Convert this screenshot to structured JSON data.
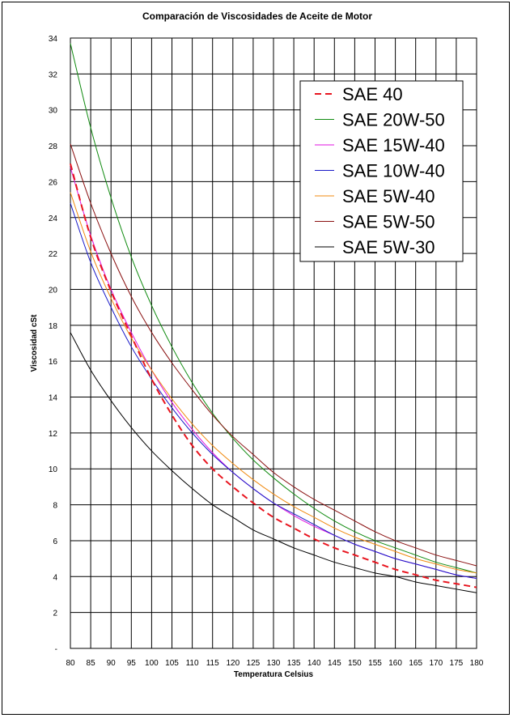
{
  "chart_data": {
    "type": "line",
    "title": "Comparación de Viscosidades de Aceite de Motor",
    "xlabel": "Temperatura Celsius",
    "ylabel": "Viscosidad cSt",
    "xlim": [
      80,
      180
    ],
    "ylim": [
      0,
      34
    ],
    "x_ticks": [
      "80",
      "85",
      "90",
      "95",
      "100",
      "105",
      "110",
      "115",
      "120",
      "125",
      "130",
      "135",
      "140",
      "145",
      "150",
      "155",
      "160",
      "165",
      "170",
      "175",
      "180"
    ],
    "y_ticks": [
      "-",
      "2",
      "4",
      "6",
      "8",
      "10",
      "12",
      "14",
      "16",
      "18",
      "20",
      "22",
      "24",
      "26",
      "28",
      "30",
      "32",
      "34"
    ],
    "grid": true,
    "legend_position": "top-right",
    "x": [
      80,
      85,
      90,
      95,
      100,
      105,
      110,
      115,
      120,
      125,
      130,
      135,
      140,
      145,
      150,
      155,
      160,
      165,
      170,
      175,
      180
    ],
    "series": [
      {
        "name": "SAE 40",
        "color": "#e8151f",
        "dashed": true,
        "values": [
          27.0,
          22.9,
          19.9,
          17.4,
          15.0,
          13.0,
          11.3,
          10.0,
          9.0,
          8.1,
          7.3,
          6.7,
          6.1,
          5.6,
          5.2,
          4.8,
          4.4,
          4.1,
          3.8,
          3.6,
          3.4
        ]
      },
      {
        "name": "SAE 20W-50",
        "color": "#0f8a0f",
        "dashed": false,
        "values": [
          33.7,
          29.0,
          25.1,
          21.8,
          19.1,
          16.8,
          14.8,
          13.1,
          11.7,
          10.5,
          9.5,
          8.6,
          7.8,
          7.1,
          6.5,
          6.0,
          5.6,
          5.2,
          4.8,
          4.5,
          4.2
        ]
      },
      {
        "name": "SAE 15W-40",
        "color": "#e010e0",
        "dashed": false,
        "values": [
          26.8,
          23.0,
          20.0,
          17.6,
          15.5,
          13.7,
          12.2,
          10.9,
          9.8,
          8.9,
          8.1,
          7.4,
          6.8,
          6.3,
          5.8,
          5.4,
          5.0,
          4.7,
          4.4,
          4.1,
          3.9
        ]
      },
      {
        "name": "SAE 10W-40",
        "color": "#1818c8",
        "dashed": false,
        "values": [
          24.8,
          21.5,
          19.0,
          16.8,
          15.0,
          13.4,
          12.0,
          10.8,
          9.8,
          8.9,
          8.1,
          7.5,
          6.9,
          6.3,
          5.8,
          5.4,
          5.0,
          4.7,
          4.4,
          4.1,
          3.9
        ]
      },
      {
        "name": "SAE 5W-40",
        "color": "#f08a10",
        "dashed": false,
        "values": [
          25.4,
          22.1,
          19.5,
          17.3,
          15.5,
          13.9,
          12.5,
          11.3,
          10.3,
          9.4,
          8.6,
          7.9,
          7.3,
          6.7,
          6.2,
          5.8,
          5.4,
          5.0,
          4.7,
          4.4,
          4.2
        ]
      },
      {
        "name": "SAE 5W-50",
        "color": "#8a1010",
        "dashed": false,
        "values": [
          28.1,
          24.8,
          22.0,
          19.6,
          17.6,
          15.9,
          14.4,
          13.0,
          11.8,
          10.8,
          9.8,
          9.0,
          8.3,
          7.7,
          7.1,
          6.5,
          6.0,
          5.6,
          5.2,
          4.9,
          4.6
        ]
      },
      {
        "name": "SAE 5W-30",
        "color": "#000000",
        "dashed": false,
        "values": [
          17.6,
          15.5,
          13.8,
          12.3,
          11.0,
          9.9,
          8.9,
          8.0,
          7.3,
          6.6,
          6.1,
          5.6,
          5.2,
          4.8,
          4.5,
          4.2,
          4.0,
          3.7,
          3.5,
          3.3,
          3.1
        ]
      }
    ]
  }
}
